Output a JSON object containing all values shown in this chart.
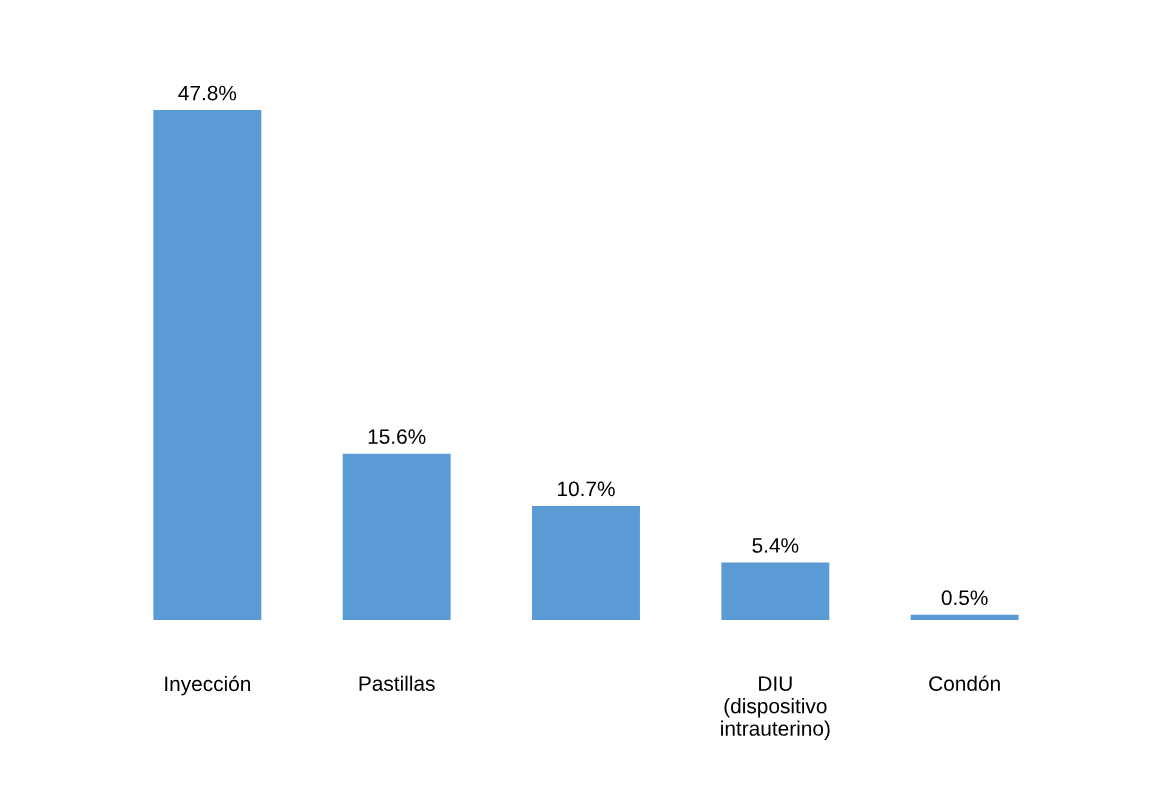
{
  "chart_data": {
    "type": "bar",
    "categories": [
      "Inyección",
      "Pastillas",
      null,
      "DIU\n(dispositivo\nintrauterino)",
      "Condón"
    ],
    "values": [
      47.8,
      15.6,
      10.7,
      5.4,
      0.5
    ],
    "value_labels": [
      "47.8%",
      "15.6%",
      "10.7%",
      "5.4%",
      "0.5%"
    ],
    "color": "#5b9bd5",
    "grid": false,
    "legend": false
  }
}
